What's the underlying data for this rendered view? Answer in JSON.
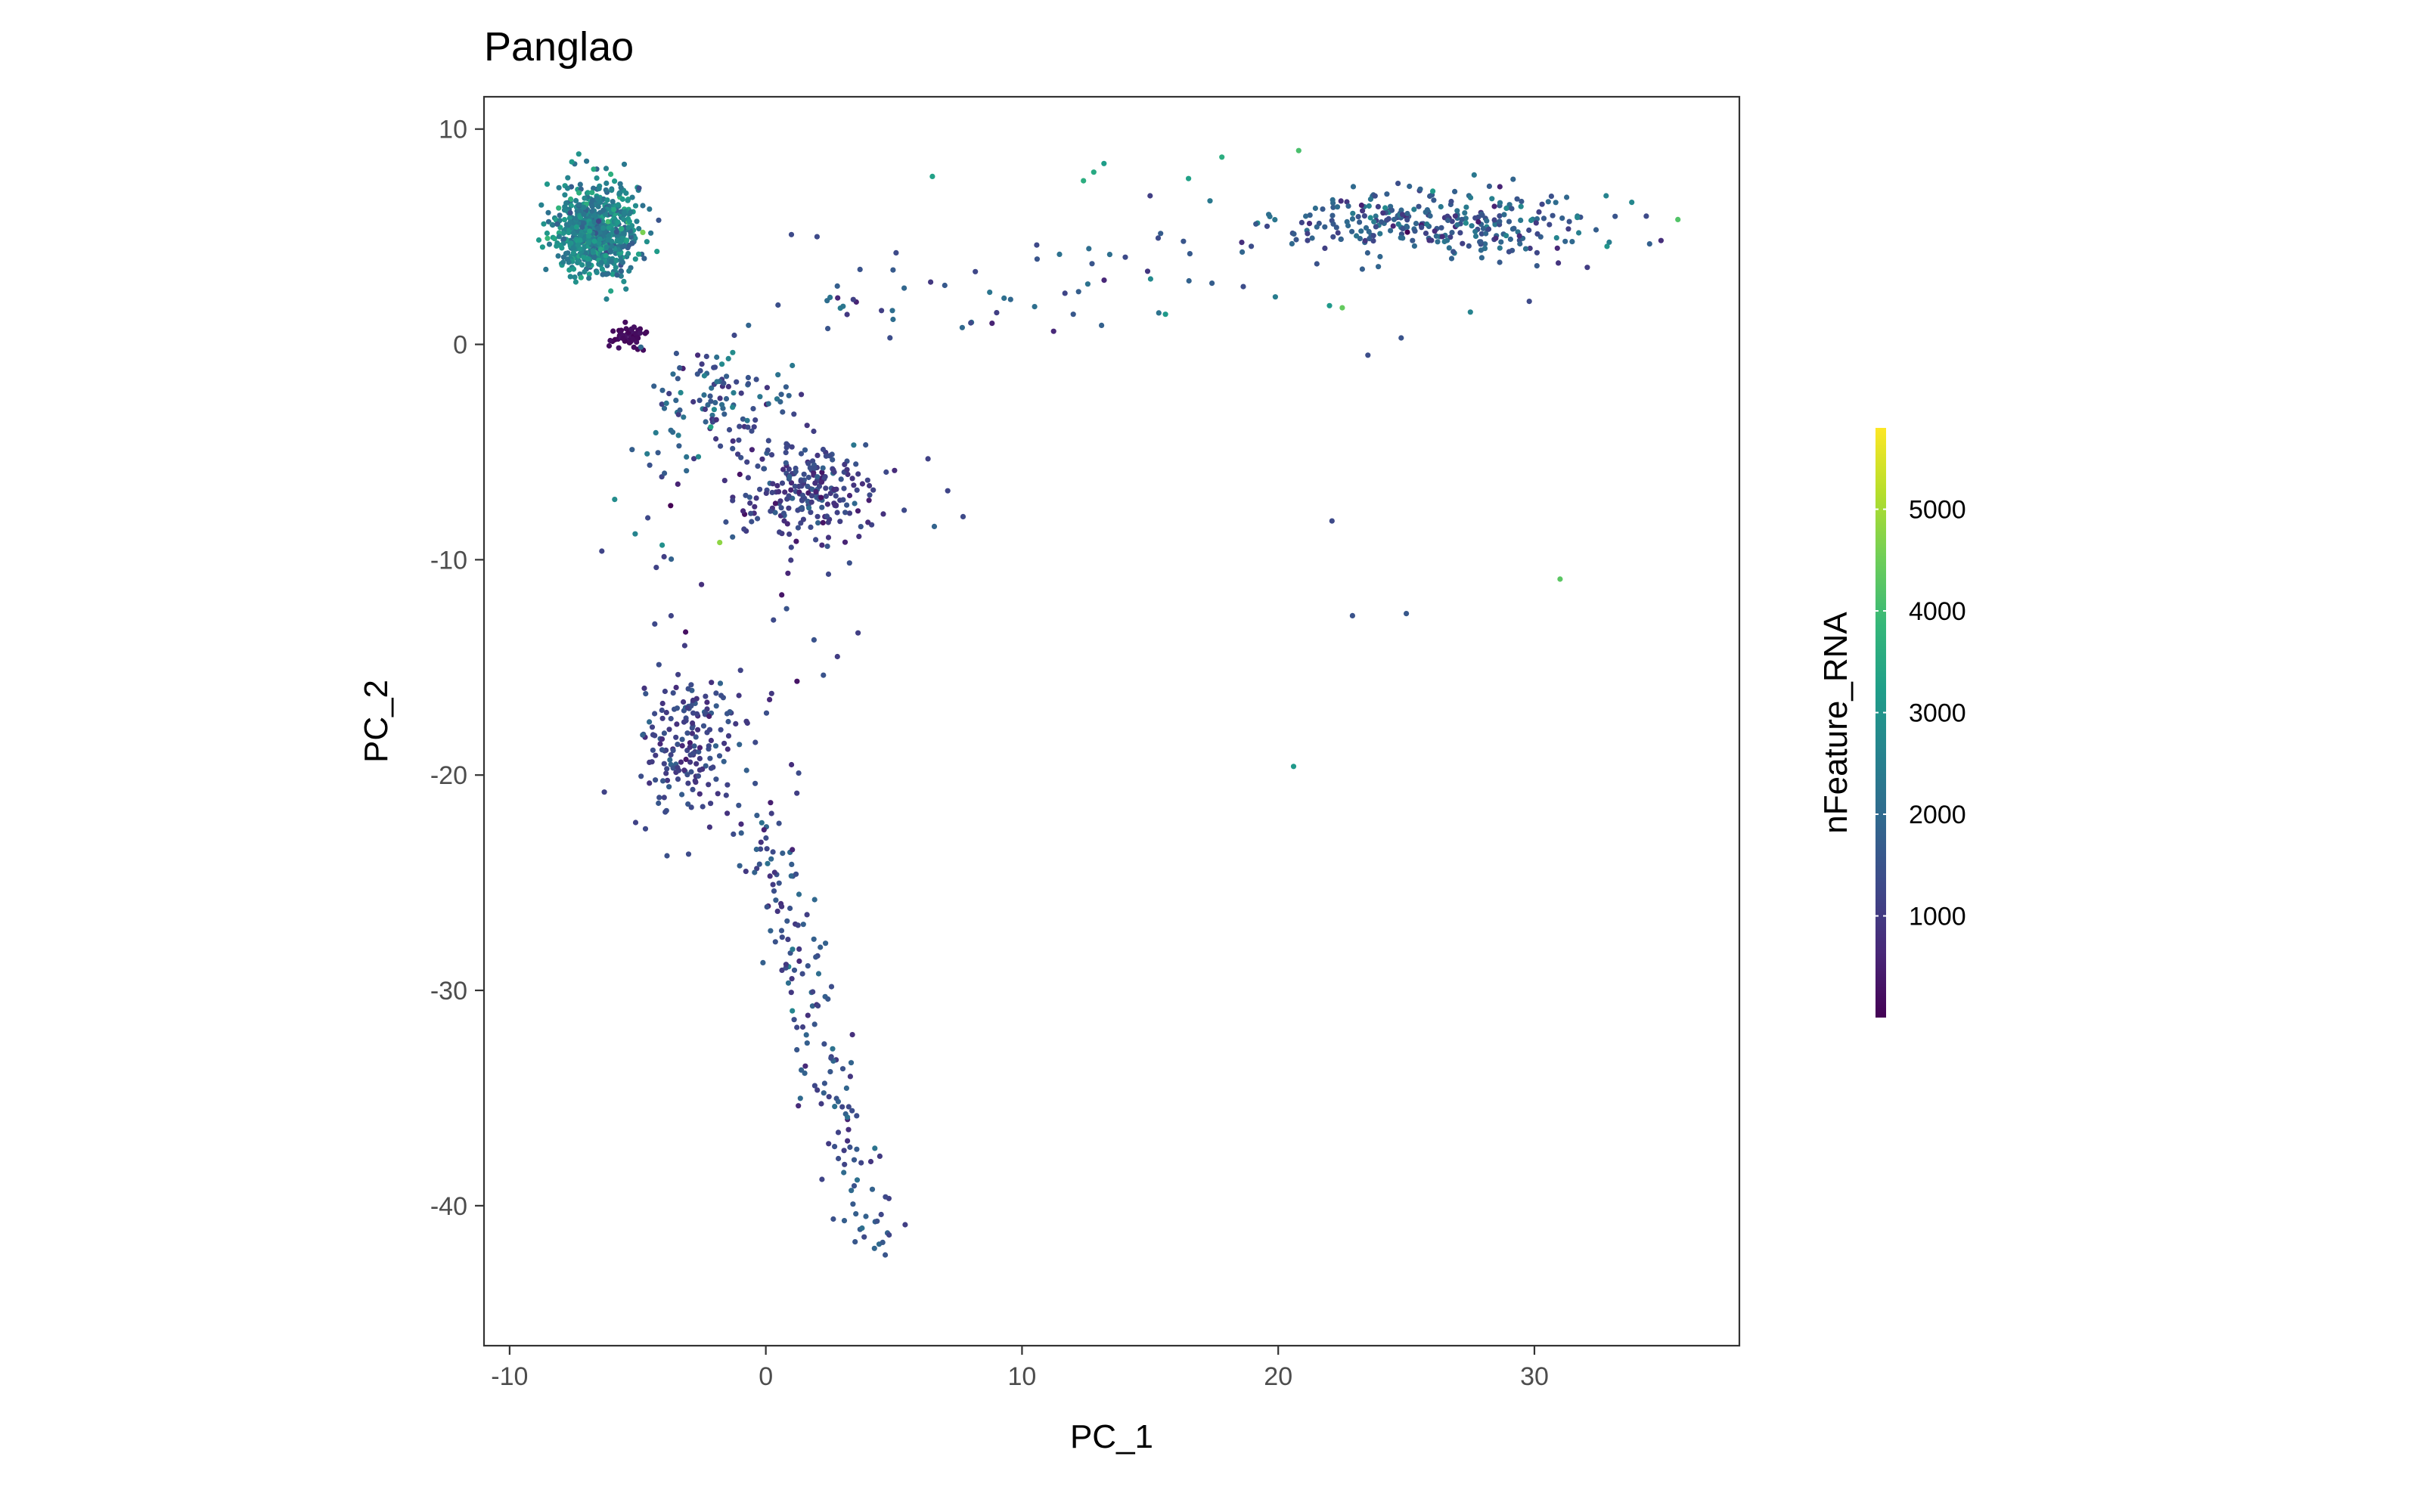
{
  "chart_data": {
    "type": "scatter",
    "title": "Panglao",
    "xlabel": "PC_1",
    "ylabel": "PC_2",
    "xlim": [
      -11,
      38
    ],
    "ylim": [
      -46.5,
      11.5
    ],
    "x_ticks": [
      -10,
      0,
      10,
      20,
      30
    ],
    "y_ticks": [
      10,
      0,
      -10,
      -20,
      -30,
      -40
    ],
    "x_tick_labels": [
      "-10",
      "0",
      "10",
      "20",
      "30"
    ],
    "y_tick_labels": [
      "10",
      "0",
      "-10",
      "-20",
      "-30",
      "-40"
    ],
    "grid": false,
    "legend": {
      "title": "nFeature_RNA",
      "position": "right",
      "range": [
        0,
        5800
      ],
      "ticks": [
        1000,
        2000,
        3000,
        4000,
        5000
      ],
      "tick_labels": [
        "1000",
        "2000",
        "3000",
        "4000",
        "5000"
      ],
      "colormap": "viridis",
      "colors": [
        "#440154",
        "#482878",
        "#3e4989",
        "#31688e",
        "#26828e",
        "#1f9e89",
        "#35b779",
        "#6ece58",
        "#b5de2b",
        "#fde725"
      ]
    },
    "clusters": [
      {
        "cx": -6.6,
        "cy": 5.3,
        "sx": 0.8,
        "sy": 1.1,
        "n": 700,
        "c": 2600,
        "cs": 500
      },
      {
        "cx": -5.3,
        "cy": 0.4,
        "sx": 0.3,
        "sy": 0.3,
        "n": 60,
        "c": 200,
        "cs": 80
      },
      {
        "cx": -2.0,
        "cy": -2.5,
        "sx": 1.3,
        "sy": 1.4,
        "n": 110,
        "c": 1800,
        "cs": 600
      },
      {
        "cx": 1.6,
        "cy": -7.0,
        "sx": 1.5,
        "sy": 1.2,
        "n": 240,
        "c": 1200,
        "cs": 350
      },
      {
        "cx": -3.1,
        "cy": -18.5,
        "sx": 1.0,
        "sy": 2.3,
        "n": 180,
        "c": 1200,
        "cs": 350
      },
      {
        "cx": 26.0,
        "cy": 5.6,
        "sx": 3.2,
        "sy": 0.8,
        "n": 300,
        "c": 1700,
        "cs": 500
      }
    ],
    "segments": [
      {
        "x0": -0.5,
        "y0": -21.0,
        "x1": 4.2,
        "y1": -42.0,
        "n": 170,
        "spread": 0.6,
        "c": 1400,
        "cs": 450
      },
      {
        "x0": 2.0,
        "y0": 1.5,
        "x1": 20.0,
        "y1": 3.8,
        "n": 55,
        "spread": 1.2,
        "c": 1500,
        "cs": 600
      },
      {
        "x0": -4.2,
        "y0": -4.0,
        "x1": -3.3,
        "y1": -14.0,
        "n": 15,
        "spread": 0.7,
        "c": 1500,
        "cs": 700
      },
      {
        "x0": 0.5,
        "y0": -11.0,
        "x1": 1.3,
        "y1": -20.0,
        "n": 15,
        "spread": 1.0,
        "c": 1200,
        "cs": 400
      }
    ],
    "outliers": [
      {
        "x": 6.5,
        "y": 7.8,
        "v": 3300
      },
      {
        "x": 12.8,
        "y": 8.0,
        "v": 3500
      },
      {
        "x": 13.2,
        "y": 8.4,
        "v": 3200
      },
      {
        "x": 12.4,
        "y": 7.6,
        "v": 3600
      },
      {
        "x": 17.8,
        "y": 8.7,
        "v": 3600
      },
      {
        "x": 20.8,
        "y": 9.0,
        "v": 4100
      },
      {
        "x": 22.1,
        "y": -8.2,
        "v": 1300
      },
      {
        "x": 22.9,
        "y": -12.6,
        "v": 1500
      },
      {
        "x": 25.0,
        "y": -12.5,
        "v": 1600
      },
      {
        "x": 31.0,
        "y": -10.9,
        "v": 4300
      },
      {
        "x": 20.6,
        "y": -19.6,
        "v": 3100
      },
      {
        "x": 35.6,
        "y": 5.8,
        "v": 4200
      },
      {
        "x": 33.8,
        "y": 6.6,
        "v": 2700
      },
      {
        "x": 32.8,
        "y": 6.9,
        "v": 2600
      },
      {
        "x": -1.8,
        "y": -9.2,
        "v": 4800
      },
      {
        "x": -6.4,
        "y": -9.6,
        "v": 1200
      },
      {
        "x": 22.5,
        "y": 1.7,
        "v": 4400
      },
      {
        "x": 22.0,
        "y": 1.8,
        "v": 3100
      },
      {
        "x": -4.8,
        "y": 5.2,
        "v": 4600
      },
      {
        "x": 1.0,
        "y": 5.1,
        "v": 1300
      },
      {
        "x": 2.0,
        "y": 5.0,
        "v": 1300
      },
      {
        "x": 15.0,
        "y": 6.9,
        "v": 1100
      },
      {
        "x": 16.5,
        "y": 7.7,
        "v": 3300
      },
      {
        "x": 5.4,
        "y": -7.7,
        "v": 1300
      },
      {
        "x": 7.7,
        "y": -8.0,
        "v": 1300
      },
      {
        "x": 7.1,
        "y": -6.8,
        "v": 1200
      },
      {
        "x": 3.6,
        "y": -13.4,
        "v": 1100
      },
      {
        "x": 0.3,
        "y": -12.8,
        "v": 1300
      },
      {
        "x": -5.9,
        "y": -7.2,
        "v": 2800
      },
      {
        "x": -5.1,
        "y": -8.8,
        "v": 2600
      },
      {
        "x": 8.0,
        "y": 1.0,
        "v": 1300
      },
      {
        "x": 12.0,
        "y": 1.4,
        "v": 1600
      },
      {
        "x": 15.6,
        "y": 1.4,
        "v": 3100
      },
      {
        "x": 23.5,
        "y": -0.5,
        "v": 1400
      },
      {
        "x": 24.8,
        "y": 0.3,
        "v": 1500
      },
      {
        "x": 29.8,
        "y": 2.0,
        "v": 1300
      },
      {
        "x": 27.5,
        "y": 1.5,
        "v": 2600
      }
    ]
  }
}
